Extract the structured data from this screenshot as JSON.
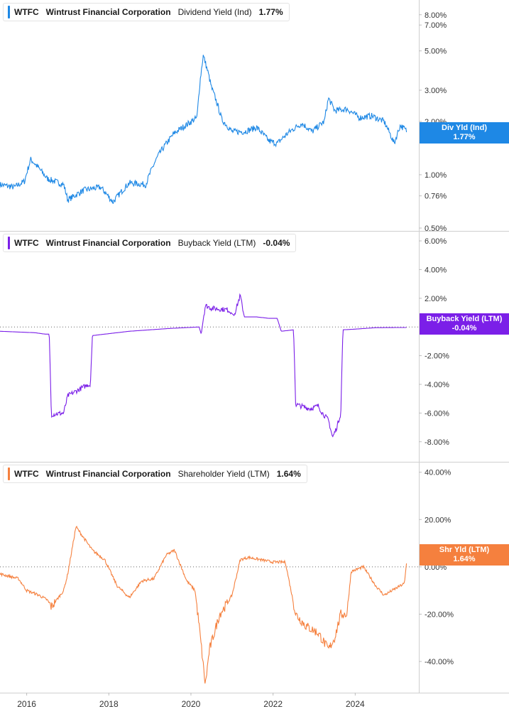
{
  "chart_data": [
    {
      "type": "line",
      "ticker": "WTFC",
      "company": "Wintrust Financial Corporation",
      "metric": "Dividend Yield (Ind)",
      "value": "1.77%",
      "badge": {
        "label": "Div Yld (Ind)",
        "value": "1.77%"
      },
      "scale": "log",
      "color": "#1e88e5",
      "ylim": [
        0.5,
        9.0
      ],
      "y_ticks": [
        "8.00%",
        "7.00%",
        "5.00%",
        "3.00%",
        "2.00%",
        "1.00%",
        "0.76%",
        "0.50%"
      ],
      "x_ticks": [
        "2016",
        "2018",
        "2020",
        "2022",
        "2024"
      ],
      "series": [
        {
          "x": [
            2015.35,
            2015.7,
            2015.95,
            2016.1,
            2016.5,
            2016.9,
            2017.0,
            2017.4,
            2017.8,
            2018.1,
            2018.5,
            2018.9,
            2019.2,
            2019.6,
            2019.9,
            2020.15,
            2020.3,
            2020.5,
            2020.75,
            2021.0,
            2021.3,
            2021.6,
            2021.9,
            2022.1,
            2022.4,
            2022.7,
            2022.95,
            2023.25,
            2023.35,
            2023.5,
            2023.8,
            2024.1,
            2024.4,
            2024.7,
            2024.95,
            2025.1,
            2025.25
          ],
          "y": [
            0.88,
            0.85,
            0.92,
            1.22,
            0.95,
            0.88,
            0.72,
            0.82,
            0.85,
            0.7,
            0.9,
            0.88,
            1.28,
            1.72,
            1.92,
            2.1,
            4.7,
            3.1,
            2.05,
            1.75,
            1.75,
            1.85,
            1.55,
            1.5,
            1.75,
            1.95,
            1.75,
            2.0,
            2.7,
            2.3,
            2.35,
            2.1,
            2.15,
            2.0,
            1.5,
            1.9,
            1.77
          ]
        }
      ]
    },
    {
      "type": "line",
      "ticker": "WTFC",
      "company": "Wintrust Financial Corporation",
      "metric": "Buyback Yield (LTM)",
      "value": "-0.04%",
      "badge": {
        "label": "Buyback Yield (LTM)",
        "value": "-0.04%"
      },
      "scale": "linear",
      "color": "#7b1fe8",
      "ylim": [
        -9.2,
        6.3
      ],
      "y_ticks": [
        6,
        4,
        2,
        -2,
        -4,
        -6,
        -8
      ],
      "y_tick_labels": [
        "6.00%",
        "4.00%",
        "2.00%",
        "-2.00%",
        "-4.00%",
        "-6.00%",
        "-8.00%"
      ],
      "zero_line": true,
      "series": [
        {
          "x": [
            2015.35,
            2016.2,
            2016.45,
            2016.55,
            2016.6,
            2016.9,
            2017.0,
            2017.5,
            2017.55,
            2017.6,
            2018.5,
            2019.5,
            2020.2,
            2020.25,
            2020.35,
            2020.5,
            2020.9,
            2021.05,
            2021.2,
            2021.3,
            2021.6,
            2021.9,
            2022.1,
            2022.2,
            2022.5,
            2022.55,
            2022.9,
            2023.1,
            2023.2,
            2023.35,
            2023.45,
            2023.55,
            2023.65,
            2023.7,
            2024.0,
            2024.5,
            2025.0,
            2025.25
          ],
          "y": [
            -0.3,
            -0.4,
            -0.5,
            -0.5,
            -6.1,
            -6.0,
            -4.8,
            -4.0,
            -4.1,
            -0.6,
            -0.3,
            -0.1,
            0.0,
            -0.5,
            1.5,
            1.3,
            1.2,
            0.8,
            2.2,
            0.7,
            0.7,
            0.6,
            0.6,
            -0.3,
            -0.2,
            -5.4,
            -5.7,
            -5.5,
            -6.0,
            -6.5,
            -7.7,
            -7.0,
            -6.0,
            -0.2,
            -0.15,
            -0.05,
            -0.04,
            -0.04
          ]
        }
      ]
    },
    {
      "type": "line",
      "ticker": "WTFC",
      "company": "Wintrust Financial Corporation",
      "metric": "Shareholder Yield (LTM)",
      "value": "1.64%",
      "badge": {
        "label": "Shr Yld (LTM)",
        "value": "1.64%"
      },
      "scale": "linear",
      "color": "#f5803e",
      "ylim": [
        -52,
        42
      ],
      "y_ticks": [
        40,
        20,
        0,
        -20,
        -40
      ],
      "y_tick_labels": [
        "40.00%",
        "20.00%",
        "0.00%",
        "-20.00%",
        "-40.00%"
      ],
      "zero_line": true,
      "series": [
        {
          "x": [
            2015.35,
            2015.8,
            2016.0,
            2016.3,
            2016.5,
            2016.6,
            2016.9,
            2017.0,
            2017.2,
            2017.6,
            2017.9,
            2018.2,
            2018.5,
            2018.8,
            2019.1,
            2019.4,
            2019.6,
            2019.9,
            2020.1,
            2020.2,
            2020.35,
            2020.45,
            2020.7,
            2020.9,
            2021.0,
            2021.2,
            2021.4,
            2021.7,
            2022.0,
            2022.3,
            2022.55,
            2022.8,
            2023.1,
            2023.35,
            2023.5,
            2023.65,
            2023.8,
            2023.9,
            2024.2,
            2024.5,
            2024.7,
            2024.9,
            2025.2,
            2025.25
          ],
          "y": [
            -3,
            -5,
            -10,
            -12,
            -14,
            -17,
            -10,
            -3,
            17,
            7,
            3,
            -8,
            -13,
            -6,
            -5,
            5,
            7,
            -6,
            -10,
            -25,
            -50,
            -35,
            -20,
            -15,
            -12,
            3,
            4,
            3,
            2,
            2,
            -20,
            -25,
            -28,
            -35,
            -30,
            -20,
            -20,
            -2,
            0,
            -8,
            -12,
            -10,
            -7,
            1.6
          ]
        }
      ]
    }
  ]
}
